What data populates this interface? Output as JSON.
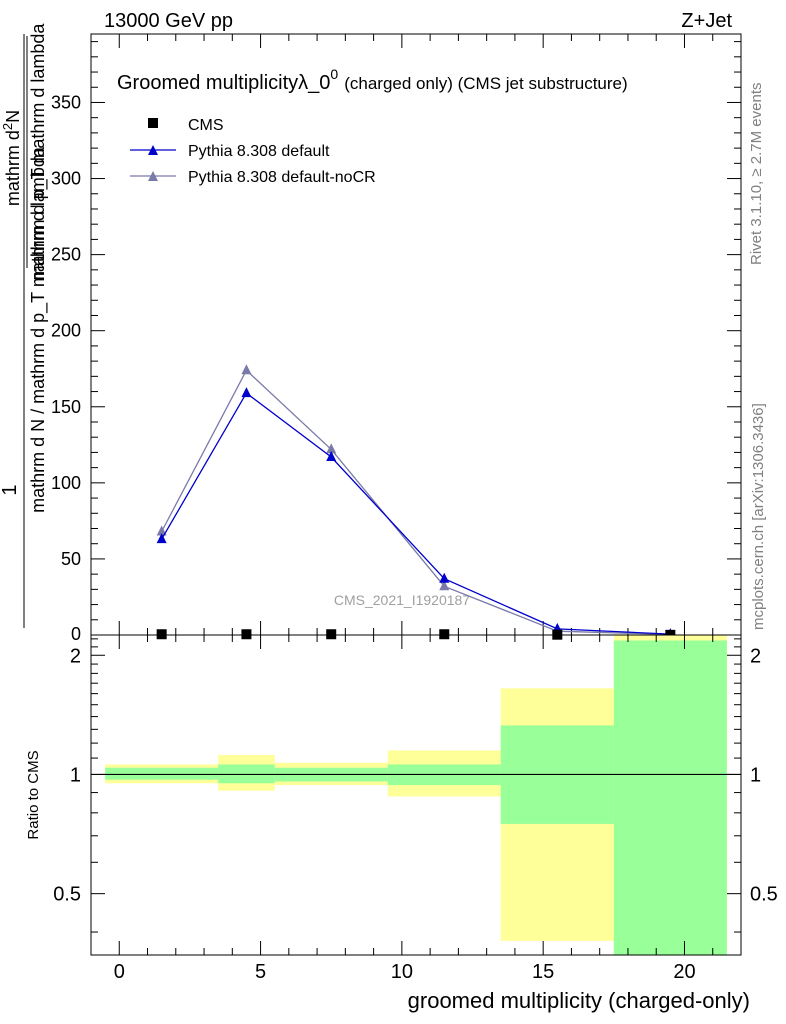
{
  "header": {
    "energy_label": "13000 GeV pp",
    "process_label": "Z+Jet"
  },
  "side_labels": {
    "rivet": "Rivet 3.1.10, ≥ 2.7M events",
    "mcplots": "mcplots.cern.ch [arXiv:1306.3436]"
  },
  "colors": {
    "data": "#000000",
    "pythia_default": "#0000cc",
    "pythia_nocr": "#7a7aaa",
    "band_inner": "#99ff99",
    "band_outer": "#ffff99"
  },
  "chart_data": [
    {
      "type": "line",
      "title_main": "Groomed multiplicityλ_0",
      "title_sup": "0",
      "title_sub": "(charged only) (CMS jet substructure)",
      "watermark": "CMS_2021_I1920187",
      "ylabel_frac_num": "1",
      "ylabel_main": "mathrm d N / mathrm d p_T mathrm d lambda",
      "ylabel_inner_num": "mathrm d",
      "ylabel_inner_sup": "2",
      "ylabel_inner_num_end": "N",
      "ylabel_inner_den": "mathrm d p_T mathrm d lambda",
      "xlim": [
        -1,
        22
      ],
      "ylim": [
        0,
        395
      ],
      "yticks": [
        50,
        100,
        150,
        200,
        250,
        300,
        350
      ],
      "yticks_labels": [
        "50",
        "100",
        "150",
        "200",
        "250",
        "300",
        "350"
      ],
      "y0_label": "0",
      "legend_position": "top-left",
      "series": [
        {
          "name": "CMS",
          "marker": "square",
          "color": "#000000",
          "x": [
            1.5,
            4.5,
            7.5,
            11.5,
            15.5,
            19.5
          ],
          "y": [
            0.5,
            0.5,
            0.5,
            0.5,
            0.2,
            0.1
          ]
        },
        {
          "name": "Pythia 8.308 default",
          "marker": "triangle",
          "color": "#0000cc",
          "x": [
            1.5,
            4.5,
            7.5,
            11.5,
            15.5,
            19.5
          ],
          "y": [
            63,
            159,
            117,
            37,
            4,
            0.6
          ]
        },
        {
          "name": "Pythia 8.308 default-noCR",
          "marker": "triangle",
          "color": "#7a7aaa",
          "x": [
            1.5,
            4.5,
            7.5,
            11.5,
            15.5,
            19.5
          ],
          "y": [
            68,
            174,
            122,
            32,
            2.5,
            0.4
          ]
        }
      ]
    },
    {
      "type": "area",
      "ylabel": "Ratio to CMS",
      "xlabel": "groomed multiplicity (charged-only)",
      "xlim": [
        -1,
        22
      ],
      "ylim": [
        0.35,
        2.25
      ],
      "log_y": true,
      "xticks": [
        0,
        5,
        10,
        15,
        20
      ],
      "xticks_labels": [
        "0",
        "5",
        "10",
        "15",
        "20"
      ],
      "yticks": [
        0.5,
        1,
        2
      ],
      "yticks_labels": [
        "0.5",
        "1",
        "2"
      ],
      "reference_line": 1,
      "bins": [
        {
          "x0": -0.5,
          "x1": 3.5,
          "inner": [
            0.97,
            1.04
          ],
          "outer": [
            0.95,
            1.06
          ]
        },
        {
          "x0": 3.5,
          "x1": 5.5,
          "inner": [
            0.95,
            1.06
          ],
          "outer": [
            0.91,
            1.12
          ]
        },
        {
          "x0": 5.5,
          "x1": 9.5,
          "inner": [
            0.96,
            1.04
          ],
          "outer": [
            0.94,
            1.07
          ]
        },
        {
          "x0": 9.5,
          "x1": 13.5,
          "inner": [
            0.94,
            1.06
          ],
          "outer": [
            0.88,
            1.15
          ]
        },
        {
          "x0": 13.5,
          "x1": 17.5,
          "inner": [
            0.75,
            1.33
          ],
          "outer": [
            0.38,
            1.65
          ]
        },
        {
          "x0": 17.5,
          "x1": 21.5,
          "inner": [
            0.35,
            2.18
          ],
          "outer": [
            0.35,
            2.25
          ]
        }
      ]
    }
  ]
}
